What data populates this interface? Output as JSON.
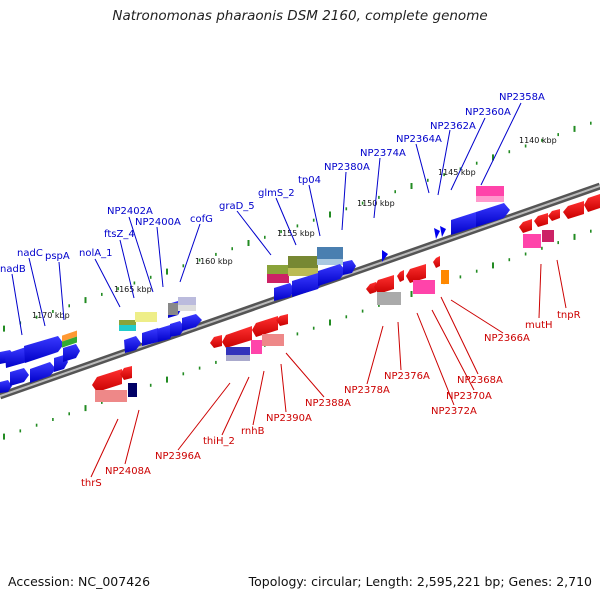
{
  "title": "Natronomonas pharaonis DSM 2160, complete genome",
  "footer": {
    "accession": "Accession: NC_007426",
    "summary": "Topology: circular; Length: 2,595,221 bp; Genes: 2,710"
  },
  "colors": {
    "forward": "#0000ee",
    "reverse": "#ee0000",
    "backbone": "#777777",
    "tick": "#228b22"
  },
  "scale_labels": [
    "1140 kbp",
    "1145 kbp",
    "1150 kbp",
    "1155 kbp",
    "1160 kbp",
    "1165 kbp",
    "1170 kbp"
  ],
  "forward_labels": [
    "NP2358A",
    "NP2360A",
    "NP2362A",
    "NP2364A",
    "NP2374A",
    "NP2380A",
    "tp04",
    "glmS_2",
    "graD_5",
    "cofG",
    "NP2400A",
    "NP2402A",
    "ftsZ_4",
    "nolA_1",
    "pspA",
    "nadC",
    "nadB"
  ],
  "reverse_labels": [
    "tnpR",
    "mutH",
    "NP2366A",
    "NP2368A",
    "NP2370A",
    "NP2372A",
    "NP2376A",
    "NP2378A",
    "NP2388A",
    "NP2390A",
    "rnhB",
    "thiH_2",
    "NP2396A",
    "NP2408A",
    "thrS"
  ]
}
